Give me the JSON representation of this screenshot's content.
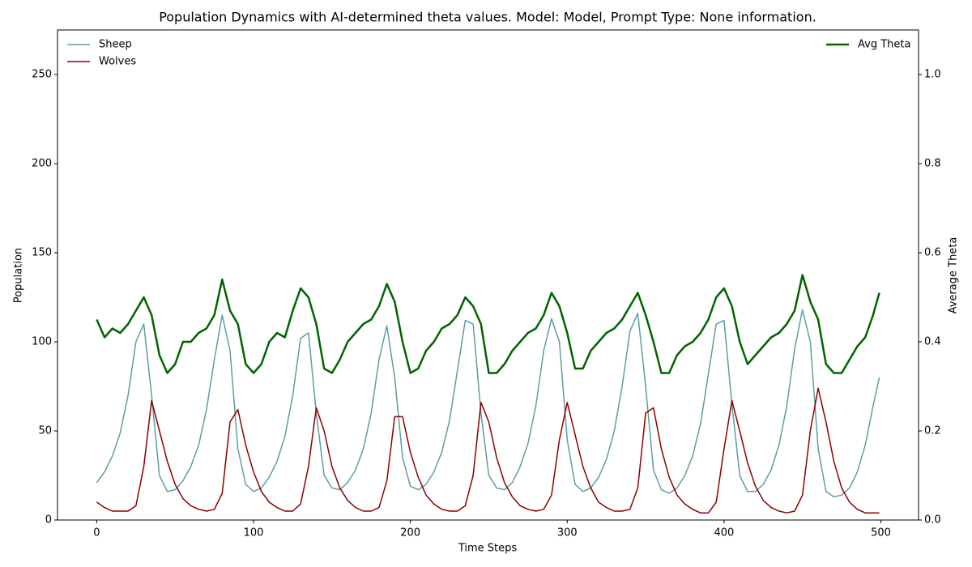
{
  "chart_data": {
    "type": "line",
    "title": "Population Dynamics with AI-determined theta values. Model: Model, Prompt Type: None information.",
    "xlabel": "Time Steps",
    "ylabel": "Population",
    "y2label": "Average Theta",
    "x": [
      0,
      5,
      10,
      15,
      20,
      25,
      30,
      35,
      40,
      45,
      50,
      55,
      60,
      65,
      70,
      75,
      80,
      85,
      90,
      95,
      100,
      105,
      110,
      115,
      120,
      125,
      130,
      135,
      140,
      145,
      150,
      155,
      160,
      165,
      170,
      175,
      180,
      185,
      190,
      195,
      200,
      205,
      210,
      215,
      220,
      225,
      230,
      235,
      240,
      245,
      250,
      255,
      260,
      265,
      270,
      275,
      280,
      285,
      290,
      295,
      300,
      305,
      310,
      315,
      320,
      325,
      330,
      335,
      340,
      345,
      350,
      355,
      360,
      365,
      370,
      375,
      380,
      385,
      390,
      395,
      400,
      405,
      410,
      415,
      420,
      425,
      430,
      435,
      440,
      445,
      450,
      455,
      460,
      465,
      470,
      475,
      480,
      485,
      490,
      495,
      499
    ],
    "series": [
      {
        "name": "Sheep",
        "color": "#5f9ea0",
        "width": 1.5,
        "values": [
          21,
          27,
          36,
          49,
          70,
          100,
          110,
          70,
          25,
          16,
          17,
          22,
          30,
          42,
          62,
          90,
          115,
          95,
          40,
          20,
          16,
          18,
          24,
          33,
          47,
          70,
          102,
          105,
          60,
          25,
          18,
          17,
          21,
          28,
          40,
          60,
          90,
          109,
          80,
          35,
          19,
          17,
          20,
          27,
          38,
          56,
          84,
          112,
          110,
          60,
          25,
          18,
          17,
          21,
          30,
          43,
          64,
          95,
          113,
          100,
          45,
          20,
          16,
          18,
          24,
          34,
          50,
          75,
          106,
          116,
          75,
          28,
          17,
          15,
          18,
          25,
          36,
          54,
          82,
          110,
          112,
          65,
          25,
          16,
          16,
          20,
          28,
          42,
          64,
          96,
          118,
          100,
          40,
          16,
          13,
          14,
          18,
          27,
          42,
          64,
          80
        ]
      },
      {
        "name": "Wolves",
        "color": "#8b0000",
        "width": 1.5,
        "values": [
          10,
          7,
          5,
          5,
          5,
          8,
          30,
          67,
          50,
          33,
          20,
          12,
          8,
          6,
          5,
          6,
          15,
          55,
          62,
          42,
          27,
          16,
          10,
          7,
          5,
          5,
          9,
          30,
          63,
          50,
          30,
          18,
          11,
          7,
          5,
          5,
          7,
          22,
          58,
          58,
          38,
          24,
          14,
          9,
          6,
          5,
          5,
          8,
          25,
          66,
          55,
          35,
          21,
          13,
          8,
          6,
          5,
          6,
          14,
          45,
          66,
          48,
          30,
          18,
          10,
          7,
          5,
          5,
          6,
          18,
          60,
          63,
          40,
          24,
          14,
          9,
          6,
          4,
          4,
          10,
          40,
          67,
          50,
          32,
          19,
          11,
          7,
          5,
          4,
          5,
          14,
          50,
          74,
          55,
          33,
          18,
          10,
          6,
          4,
          4,
          4
        ]
      },
      {
        "name": "Avg Theta",
        "color": "#006400",
        "width": 2.5,
        "axis": "y2",
        "values": [
          0.45,
          0.41,
          0.43,
          0.42,
          0.44,
          0.47,
          0.5,
          0.46,
          0.37,
          0.33,
          0.35,
          0.4,
          0.4,
          0.42,
          0.43,
          0.46,
          0.54,
          0.47,
          0.44,
          0.35,
          0.33,
          0.35,
          0.4,
          0.42,
          0.41,
          0.47,
          0.52,
          0.5,
          0.44,
          0.34,
          0.33,
          0.36,
          0.4,
          0.42,
          0.44,
          0.45,
          0.48,
          0.53,
          0.49,
          0.4,
          0.33,
          0.34,
          0.38,
          0.4,
          0.43,
          0.44,
          0.46,
          0.5,
          0.48,
          0.44,
          0.33,
          0.33,
          0.35,
          0.38,
          0.4,
          0.42,
          0.43,
          0.46,
          0.51,
          0.48,
          0.42,
          0.34,
          0.34,
          0.38,
          0.4,
          0.42,
          0.43,
          0.45,
          0.48,
          0.51,
          0.46,
          0.4,
          0.33,
          0.33,
          0.37,
          0.39,
          0.4,
          0.42,
          0.45,
          0.5,
          0.52,
          0.48,
          0.4,
          0.35,
          0.37,
          0.39,
          0.41,
          0.42,
          0.44,
          0.47,
          0.55,
          0.49,
          0.45,
          0.35,
          0.33,
          0.33,
          0.36,
          0.39,
          0.41,
          0.46,
          0.51
        ]
      }
    ],
    "xlim": [
      -25,
      524
    ],
    "xticks": [
      0,
      100,
      200,
      300,
      400,
      500
    ],
    "ylim": [
      0,
      275
    ],
    "yticks": [
      0,
      50,
      100,
      150,
      200,
      250
    ],
    "y2lim": [
      0,
      1.1
    ],
    "y2ticks": [
      {
        "value": 0,
        "label": "0.0"
      },
      0.2,
      0.4,
      0.6,
      0.8,
      {
        "value": 1,
        "label": "1.0"
      }
    ],
    "grid": false,
    "legend": "upper left",
    "legend2": "upper right"
  }
}
